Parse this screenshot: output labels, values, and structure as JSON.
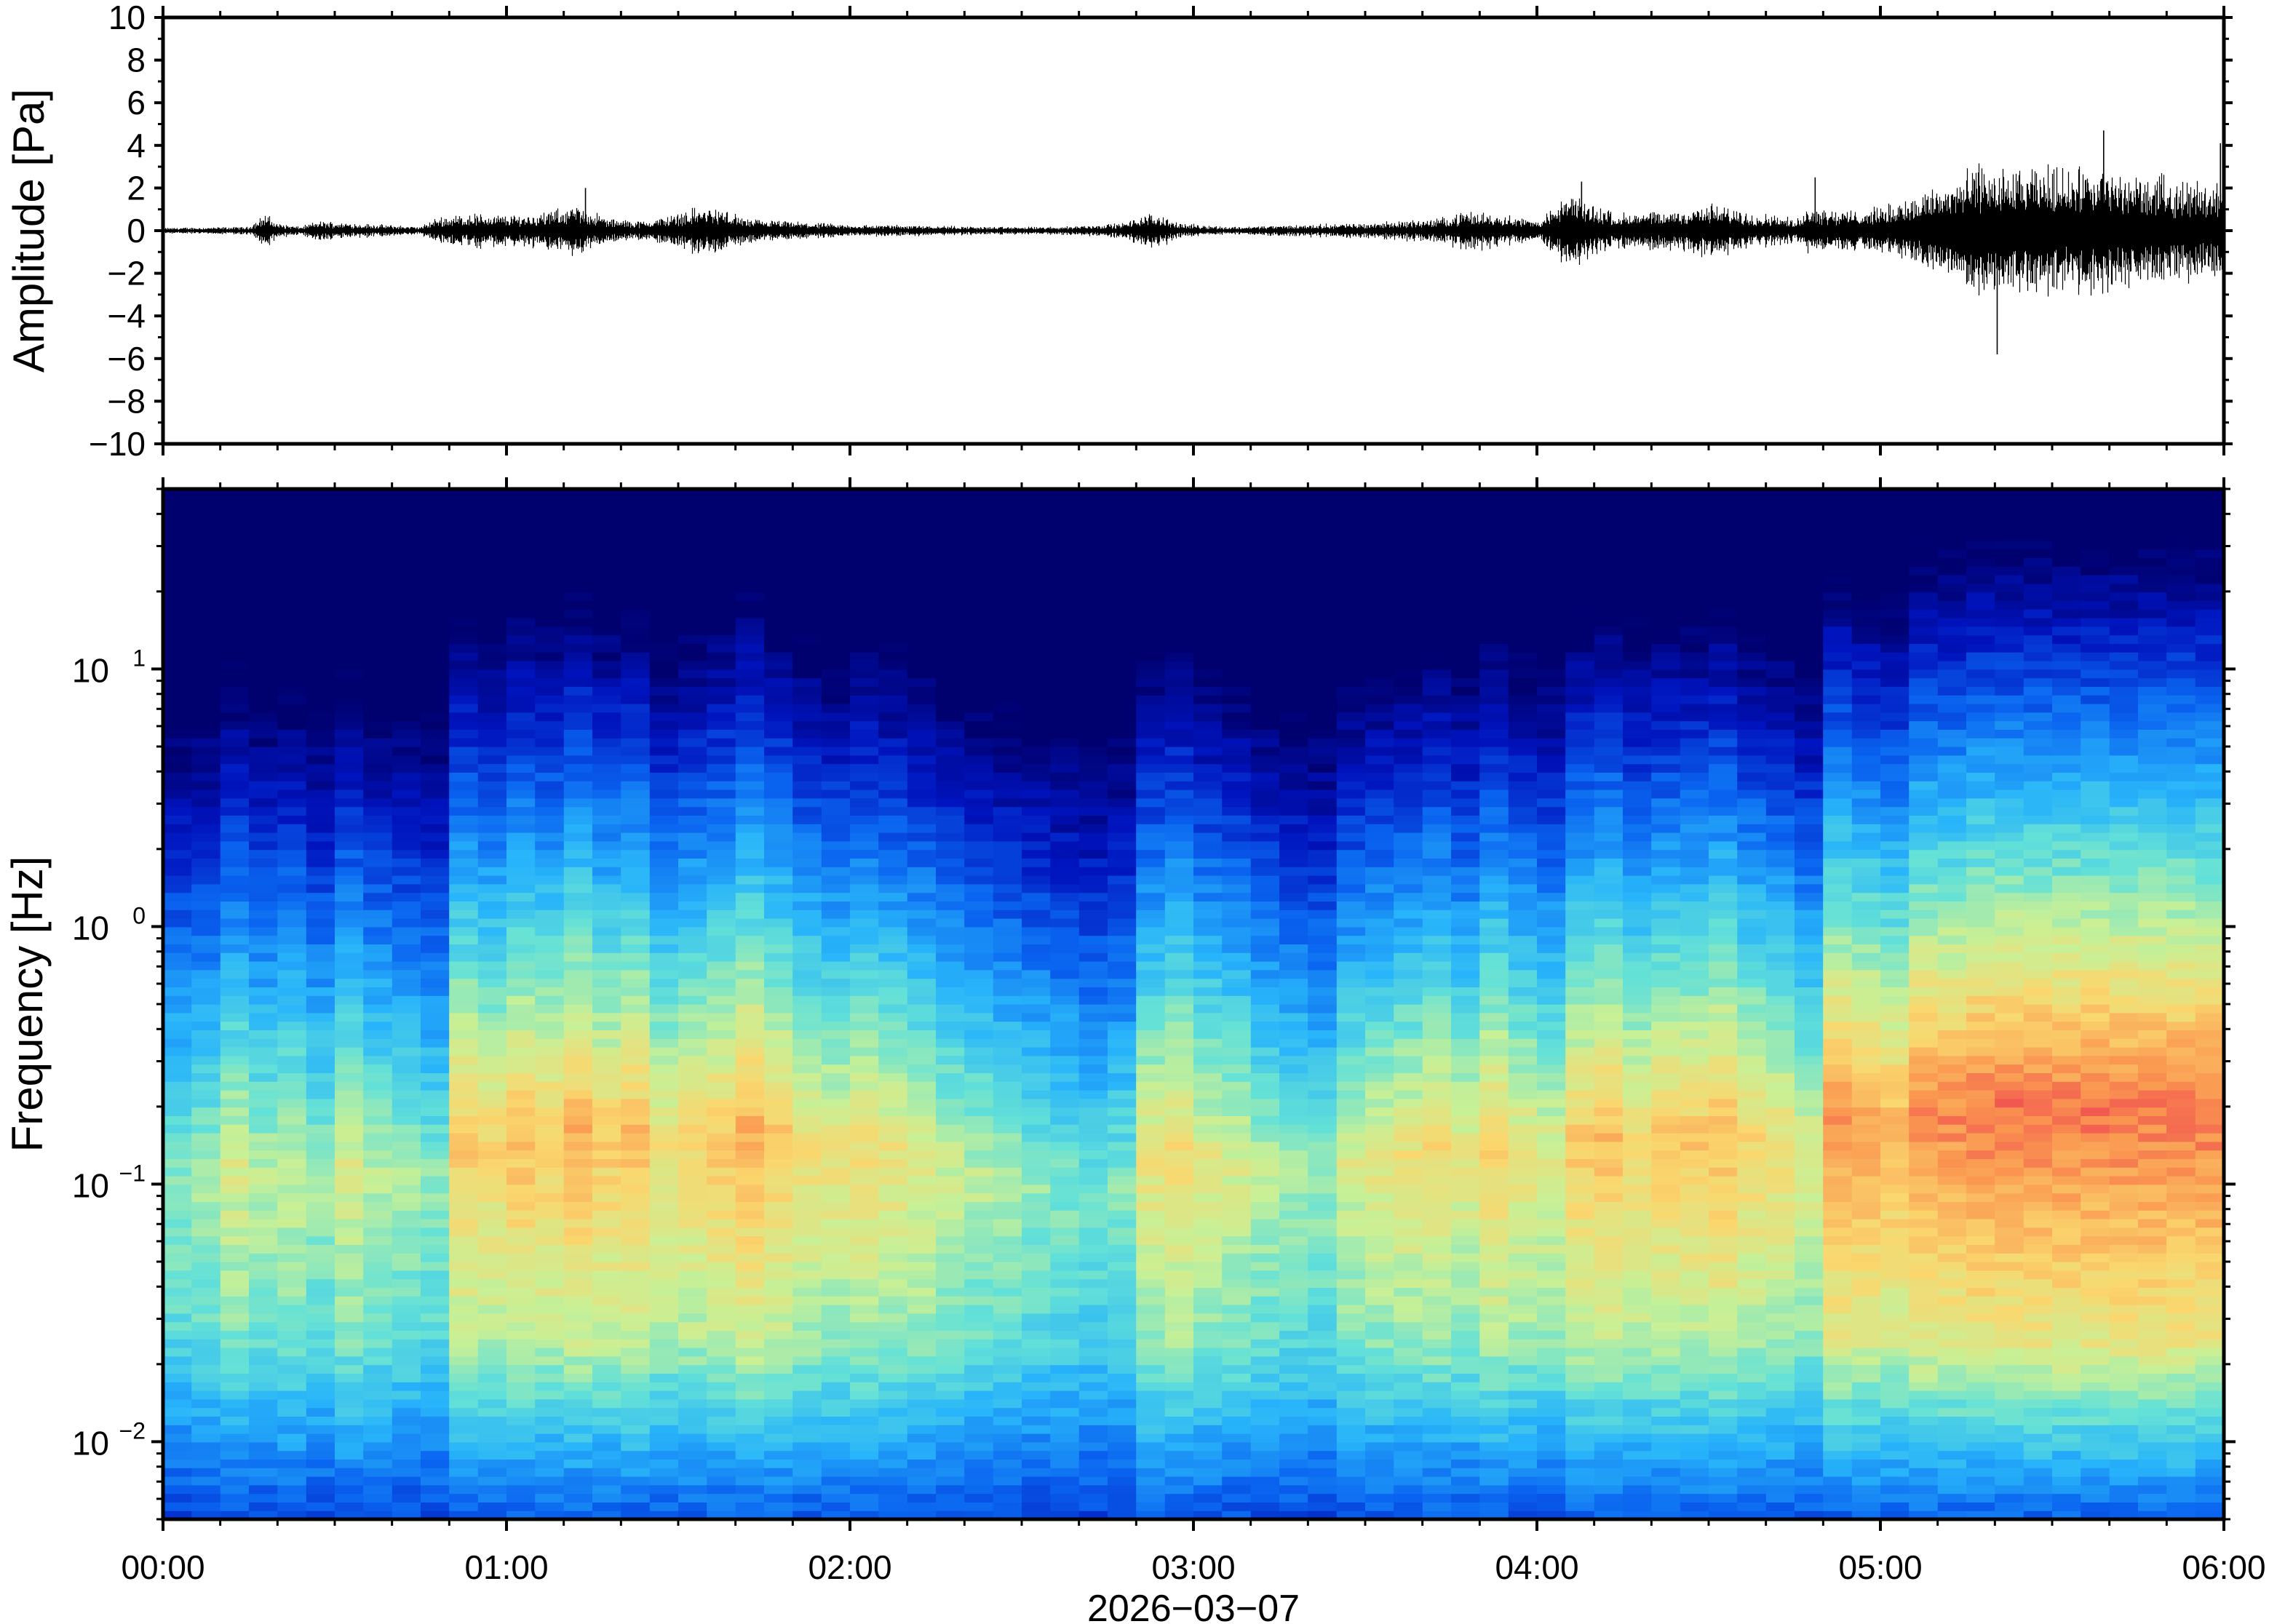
{
  "chart_data": [
    {
      "type": "line",
      "panel": "waveform",
      "ylabel": "Amplitude [Pa]",
      "ylim": [
        -10,
        10
      ],
      "yticks": [
        10,
        8,
        6,
        4,
        2,
        0,
        -2,
        -4,
        -6,
        -8,
        -10
      ],
      "ytick_labels": [
        "10",
        "8",
        "6",
        "4",
        "2",
        "0",
        "−2",
        "−4",
        "−6",
        "−8",
        "−10"
      ],
      "xlim_hours": [
        0,
        6
      ],
      "color": "#000000",
      "series": [
        {
          "t": [
            0.0,
            0.25,
            0.3,
            0.33,
            0.4,
            0.45,
            0.75,
            0.8,
            0.9,
            1.0,
            1.1,
            1.2,
            1.25,
            1.3,
            1.4,
            1.5,
            1.55,
            1.6,
            1.65,
            1.7,
            1.8,
            1.9,
            2.0,
            2.2,
            2.4,
            2.6,
            2.8,
            2.85,
            2.9,
            2.95,
            3.1,
            3.3,
            3.5,
            3.7,
            3.8,
            3.9,
            4.0,
            4.05,
            4.1,
            4.15,
            4.25,
            4.4,
            4.5,
            4.6,
            4.7,
            4.75,
            4.8,
            4.9,
            5.0,
            5.05,
            5.15,
            5.25,
            5.3,
            5.4,
            5.5,
            5.6,
            5.7,
            5.8,
            5.9,
            6.0
          ],
          "amp": [
            0.15,
            0.2,
            0.9,
            0.4,
            0.2,
            0.5,
            0.2,
            0.7,
            0.9,
            0.8,
            0.9,
            1.3,
            1.0,
            0.6,
            0.5,
            0.9,
            1.2,
            1.2,
            1.0,
            0.6,
            0.5,
            0.4,
            0.3,
            0.3,
            0.2,
            0.2,
            0.4,
            0.8,
            0.9,
            0.4,
            0.2,
            0.3,
            0.4,
            0.6,
            1.0,
            0.9,
            0.5,
            1.2,
            2.0,
            1.4,
            0.9,
            1.0,
            1.4,
            1.0,
            0.8,
            0.6,
            1.3,
            1.0,
            1.2,
            1.5,
            2.2,
            3.0,
            3.6,
            3.0,
            3.4,
            3.2,
            3.0,
            2.8,
            2.6,
            2.6
          ]
        }
      ],
      "peaks": [
        {
          "t": 1.23,
          "v": 2.0
        },
        {
          "t": 5.34,
          "v": -5.8
        },
        {
          "t": 5.65,
          "v": 4.7
        },
        {
          "t": 5.99,
          "v": 4.1
        },
        {
          "t": 4.81,
          "v": 2.5
        },
        {
          "t": 4.13,
          "v": 2.3
        }
      ]
    },
    {
      "type": "heatmap",
      "panel": "spectrogram",
      "ylabel": "Frequency [Hz]",
      "y_scale": "log",
      "ylim_hz": [
        0.005,
        50
      ],
      "yticks_hz": [
        0.01,
        0.1,
        1,
        10
      ],
      "ytick_labels": [
        {
          "base": "10",
          "exp": "−2"
        },
        {
          "base": "10",
          "exp": "−1"
        },
        {
          "base": "10",
          "exp": "0"
        },
        {
          "base": "10",
          "exp": "1"
        }
      ],
      "xlim_hours": [
        0,
        6
      ],
      "colormap": "jet",
      "columns_hours": [
        0.0,
        0.083,
        0.167,
        0.25,
        0.333,
        0.417,
        0.5,
        0.583,
        0.667,
        0.75,
        0.833,
        0.917,
        1.0,
        1.083,
        1.167,
        1.25,
        1.333,
        1.417,
        1.5,
        1.583,
        1.667,
        1.75,
        1.833,
        1.917,
        2.0,
        2.083,
        2.167,
        2.25,
        2.333,
        2.417,
        2.5,
        2.583,
        2.667,
        2.75,
        2.833,
        2.917,
        3.0,
        3.083,
        3.167,
        3.25,
        3.333,
        3.417,
        3.5,
        3.583,
        3.667,
        3.75,
        3.833,
        3.917,
        4.0,
        4.083,
        4.167,
        4.25,
        4.333,
        4.417,
        4.5,
        4.583,
        4.667,
        4.75,
        4.833,
        4.917,
        5.0,
        5.083,
        5.167,
        5.25,
        5.333,
        5.417,
        5.5,
        5.583,
        5.667,
        5.75,
        5.833,
        5.917
      ],
      "column_activity": [
        0.25,
        0.3,
        0.45,
        0.35,
        0.4,
        0.3,
        0.45,
        0.35,
        0.3,
        0.25,
        0.7,
        0.65,
        0.75,
        0.7,
        0.8,
        0.7,
        0.75,
        0.6,
        0.65,
        0.7,
        0.8,
        0.7,
        0.6,
        0.55,
        0.6,
        0.55,
        0.5,
        0.4,
        0.35,
        0.3,
        0.25,
        0.2,
        0.15,
        0.2,
        0.55,
        0.6,
        0.5,
        0.45,
        0.35,
        0.3,
        0.25,
        0.45,
        0.5,
        0.55,
        0.6,
        0.5,
        0.65,
        0.55,
        0.5,
        0.7,
        0.75,
        0.65,
        0.7,
        0.7,
        0.75,
        0.65,
        0.6,
        0.5,
        0.9,
        0.85,
        0.8,
        0.95,
        0.95,
        1.0,
        1.0,
        1.0,
        1.0,
        1.0,
        1.0,
        1.0,
        1.0,
        1.0
      ]
    }
  ],
  "x_axis": {
    "tick_labels": [
      "00:00",
      "01:00",
      "02:00",
      "03:00",
      "04:00",
      "05:00",
      "06:00"
    ],
    "date_label": "2026−03−07"
  }
}
